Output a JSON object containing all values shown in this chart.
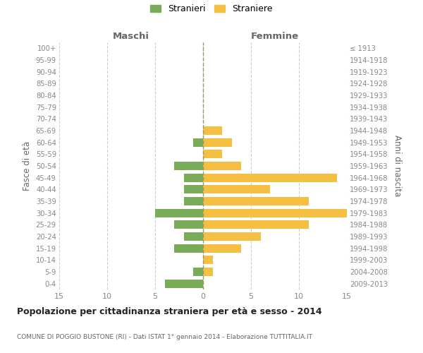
{
  "age_groups_bottom_to_top": [
    "0-4",
    "5-9",
    "10-14",
    "15-19",
    "20-24",
    "25-29",
    "30-34",
    "35-39",
    "40-44",
    "45-49",
    "50-54",
    "55-59",
    "60-64",
    "65-69",
    "70-74",
    "75-79",
    "80-84",
    "85-89",
    "90-94",
    "95-99",
    "100+"
  ],
  "birth_years_bottom_to_top": [
    "2009-2013",
    "2004-2008",
    "1999-2003",
    "1994-1998",
    "1989-1993",
    "1984-1988",
    "1979-1983",
    "1974-1978",
    "1969-1973",
    "1964-1968",
    "1959-1963",
    "1954-1958",
    "1949-1953",
    "1944-1948",
    "1939-1943",
    "1934-1938",
    "1929-1933",
    "1924-1928",
    "1919-1923",
    "1914-1918",
    "≤ 1913"
  ],
  "maschi_bottom_to_top": [
    4,
    1,
    0,
    3,
    2,
    3,
    5,
    2,
    2,
    2,
    3,
    0,
    1,
    0,
    0,
    0,
    0,
    0,
    0,
    0,
    0
  ],
  "femmine_bottom_to_top": [
    0,
    1,
    1,
    4,
    6,
    11,
    15,
    11,
    7,
    14,
    4,
    2,
    3,
    2,
    0,
    0,
    0,
    0,
    0,
    0,
    0
  ],
  "maschi_color": "#7aab58",
  "femmine_color": "#f5bf42",
  "background_color": "#ffffff",
  "grid_color": "#cccccc",
  "title": "Popolazione per cittadinanza straniera per età e sesso - 2014",
  "subtitle": "COMUNE DI POGGIO BUSTONE (RI) - Dati ISTAT 1° gennaio 2014 - Elaborazione TUTTITALIA.IT",
  "ylabel_left": "Fasce di età",
  "ylabel_right": "Anni di nascita",
  "label_maschi": "Maschi",
  "label_femmine": "Femmine",
  "legend_maschi": "Stranieri",
  "legend_femmine": "Straniere",
  "xlim": 15
}
